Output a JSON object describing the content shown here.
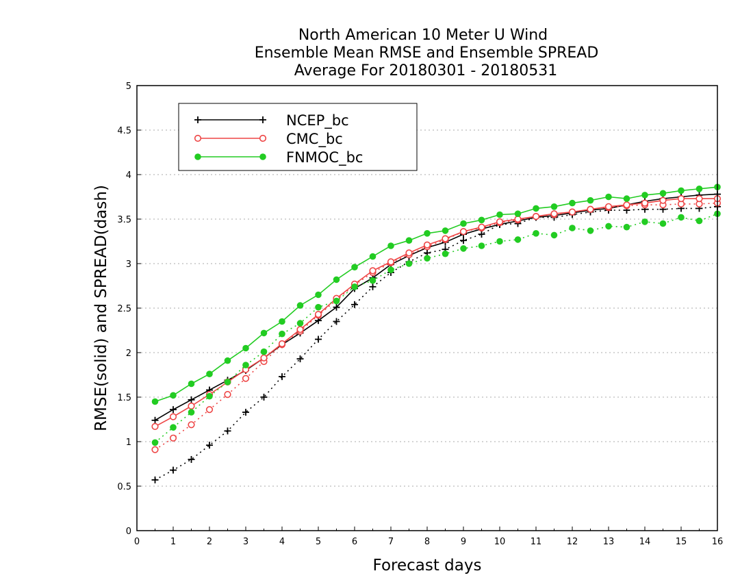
{
  "chart_data": {
    "type": "line",
    "title_lines": [
      "North American 10 Meter U Wind",
      "Ensemble Mean RMSE and Ensemble SPREAD",
      "Average For 20180301 - 20180531"
    ],
    "xlabel": "Forecast days",
    "ylabel": "RMSE(solid) and SPREAD(dash)",
    "xlim": [
      0,
      16
    ],
    "ylim": [
      0,
      5
    ],
    "x_ticks": [
      "0",
      "1",
      "2",
      "3",
      "4",
      "5",
      "6",
      "7",
      "8",
      "9",
      "10",
      "11",
      "12",
      "13",
      "14",
      "15",
      "16"
    ],
    "y_ticks": [
      "0",
      "0.5",
      "1",
      "1.5",
      "2",
      "2.5",
      "3",
      "3.5",
      "4",
      "4.5",
      "5"
    ],
    "grid": "horizontal dotted",
    "legend_position": "top-left",
    "x": [
      0.5,
      1,
      1.5,
      2,
      2.5,
      3,
      3.5,
      4,
      4.5,
      5,
      5.5,
      6,
      6.5,
      7,
      7.5,
      8,
      8.5,
      9,
      9.5,
      10,
      10.5,
      11,
      11.5,
      12,
      12.5,
      13,
      13.5,
      14,
      14.5,
      15,
      15.5,
      16
    ],
    "series": [
      {
        "name": "NCEP_bc",
        "color": "#000000",
        "marker": "plus",
        "rmse": [
          1.24,
          1.36,
          1.47,
          1.58,
          1.69,
          1.8,
          1.94,
          2.09,
          2.22,
          2.36,
          2.51,
          2.72,
          2.84,
          2.99,
          3.09,
          3.18,
          3.24,
          3.33,
          3.39,
          3.44,
          3.48,
          3.52,
          3.54,
          3.57,
          3.6,
          3.62,
          3.66,
          3.7,
          3.73,
          3.75,
          3.77,
          3.78
        ],
        "spread": [
          0.57,
          0.68,
          0.8,
          0.96,
          1.12,
          1.33,
          1.5,
          1.73,
          1.93,
          2.15,
          2.35,
          2.54,
          2.74,
          2.9,
          3.02,
          3.12,
          3.16,
          3.26,
          3.33,
          3.44,
          3.45,
          3.52,
          3.52,
          3.55,
          3.58,
          3.6,
          3.6,
          3.61,
          3.61,
          3.62,
          3.62,
          3.64
        ]
      },
      {
        "name": "CMC_bc",
        "color": "#ee4444",
        "marker": "open-circle",
        "rmse": [
          1.17,
          1.28,
          1.4,
          1.53,
          1.67,
          1.81,
          1.94,
          2.1,
          2.26,
          2.43,
          2.61,
          2.77,
          2.92,
          3.02,
          3.12,
          3.21,
          3.28,
          3.36,
          3.41,
          3.47,
          3.5,
          3.53,
          3.56,
          3.58,
          3.61,
          3.64,
          3.66,
          3.68,
          3.71,
          3.73,
          3.73,
          3.73
        ],
        "spread": [
          0.91,
          1.04,
          1.19,
          1.36,
          1.53,
          1.71,
          1.9,
          2.09,
          2.24,
          2.42,
          2.59,
          2.76,
          2.9,
          3.01,
          3.1,
          3.19,
          3.27,
          3.36,
          3.4,
          3.46,
          3.49,
          3.53,
          3.55,
          3.58,
          3.61,
          3.63,
          3.65,
          3.66,
          3.66,
          3.67,
          3.67,
          3.68
        ]
      },
      {
        "name": "FNMOC_bc",
        "color": "#22cc22",
        "marker": "filled-circle",
        "rmse": [
          1.45,
          1.52,
          1.65,
          1.76,
          1.91,
          2.05,
          2.22,
          2.35,
          2.53,
          2.65,
          2.82,
          2.96,
          3.08,
          3.2,
          3.26,
          3.34,
          3.37,
          3.45,
          3.49,
          3.55,
          3.56,
          3.62,
          3.64,
          3.68,
          3.71,
          3.75,
          3.73,
          3.77,
          3.79,
          3.82,
          3.84,
          3.86
        ],
        "spread": [
          0.99,
          1.16,
          1.33,
          1.51,
          1.67,
          1.86,
          2.01,
          2.21,
          2.33,
          2.51,
          2.58,
          2.74,
          2.81,
          2.93,
          3.0,
          3.06,
          3.11,
          3.17,
          3.2,
          3.25,
          3.27,
          3.34,
          3.32,
          3.4,
          3.37,
          3.42,
          3.41,
          3.47,
          3.45,
          3.52,
          3.48,
          3.56
        ]
      }
    ]
  }
}
